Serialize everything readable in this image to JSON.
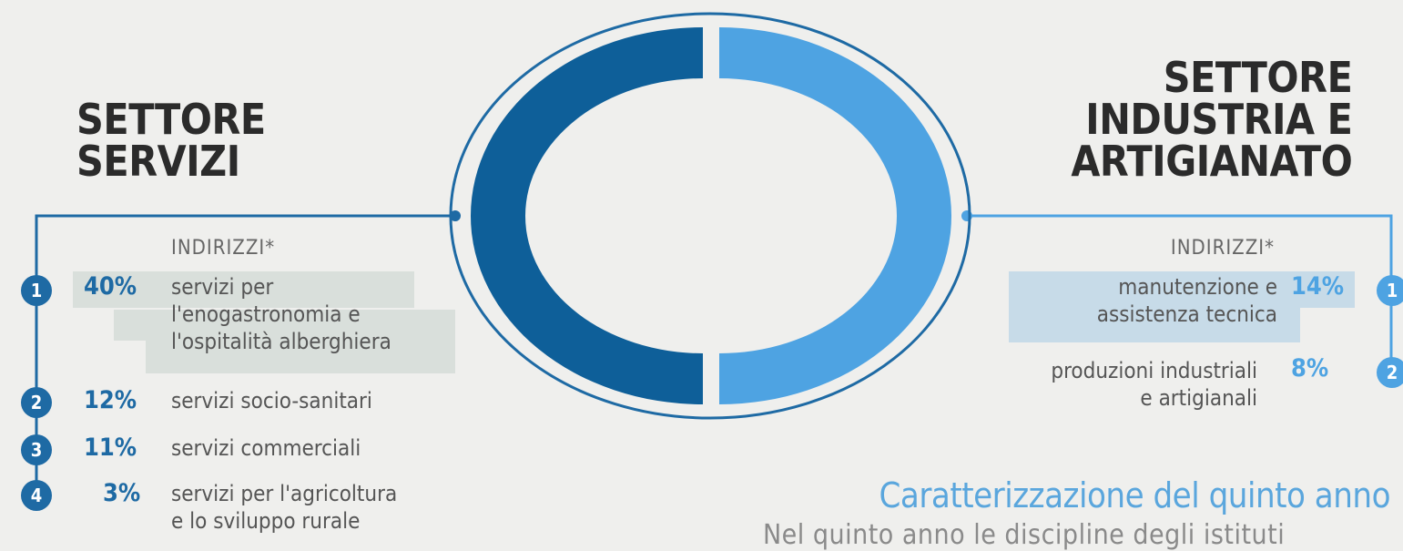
{
  "left": {
    "title_line1": "SETTORE",
    "title_line2": "SERVIZI",
    "indirizzi_label": "INDIRIZZI*",
    "items": [
      {
        "num": "1",
        "pct": "40%",
        "line1": "servizi per",
        "line2": "l'enogastronomia e",
        "line3": "l'ospitalità alberghiera"
      },
      {
        "num": "2",
        "pct": "12%",
        "line1": "servizi socio-sanitari"
      },
      {
        "num": "3",
        "pct": "11%",
        "line1": "servizi commerciali"
      },
      {
        "num": "4",
        "pct": "3%",
        "line1": "servizi per l'agricoltura",
        "line2": "e lo sviluppo rurale"
      }
    ]
  },
  "right": {
    "title_line1": "SETTORE",
    "title_line2": "INDUSTRIA E",
    "title_line3": "ARTIGIANATO",
    "indirizzi_label": "INDIRIZZI*",
    "items": [
      {
        "num": "1",
        "pct": "14%",
        "line1": "manutenzione e",
        "line2": "assistenza tecnica"
      },
      {
        "num": "2",
        "pct": "8%",
        "line1": "produzioni industriali",
        "line2": "e artigianali"
      }
    ]
  },
  "section": {
    "subtitle": "Caratterizzazione del quinto anno",
    "body_partial": "Nel quinto anno le discipline degli istituti"
  },
  "colors": {
    "left_accent": "#1e6aa4",
    "right_accent": "#4ea3e2",
    "donut_left": "#0e5f99",
    "donut_right": "#4ea3e2"
  }
}
